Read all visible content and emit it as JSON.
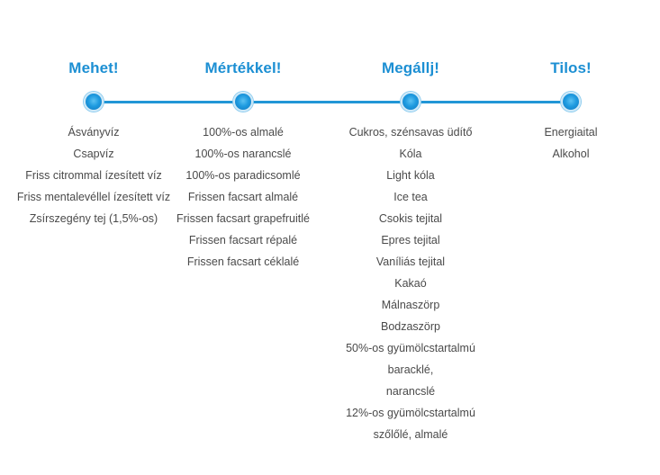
{
  "accent_color": "#1c8fd3",
  "line_color": "#2196d6",
  "columns": [
    {
      "title": "Mehet!",
      "items": [
        "Ásványvíz",
        "Csapvíz",
        "Friss citrommal ízesített víz",
        "Friss mentalevéllel ízesített víz",
        "Zsírszegény tej (1,5%-os)"
      ]
    },
    {
      "title": "Mértékkel!",
      "items": [
        "100%-os almalé",
        "100%-os narancslé",
        "100%-os paradicsomlé",
        "Frissen facsart almalé",
        "Frissen facsart grapefruitlé",
        "Frissen facsart répalé",
        "Frissen facsart céklalé"
      ]
    },
    {
      "title": "Megállj!",
      "items": [
        "Cukros, szénsavas üdítő",
        "Kóla",
        "Light kóla",
        "Ice tea",
        "Csokis tejital",
        "Epres tejital",
        "Vaníliás tejital",
        "Kakaó",
        "Málnaszörp",
        "Bodzaszörp",
        "50%-os gyümölcstartalmú",
        "baracklé,",
        "narancslé",
        "12%-os gyümölcstartalmú",
        "szőlőlé, almalé"
      ]
    },
    {
      "title": "Tilos!",
      "items": [
        "Energiaital",
        "Alkohol"
      ]
    }
  ]
}
